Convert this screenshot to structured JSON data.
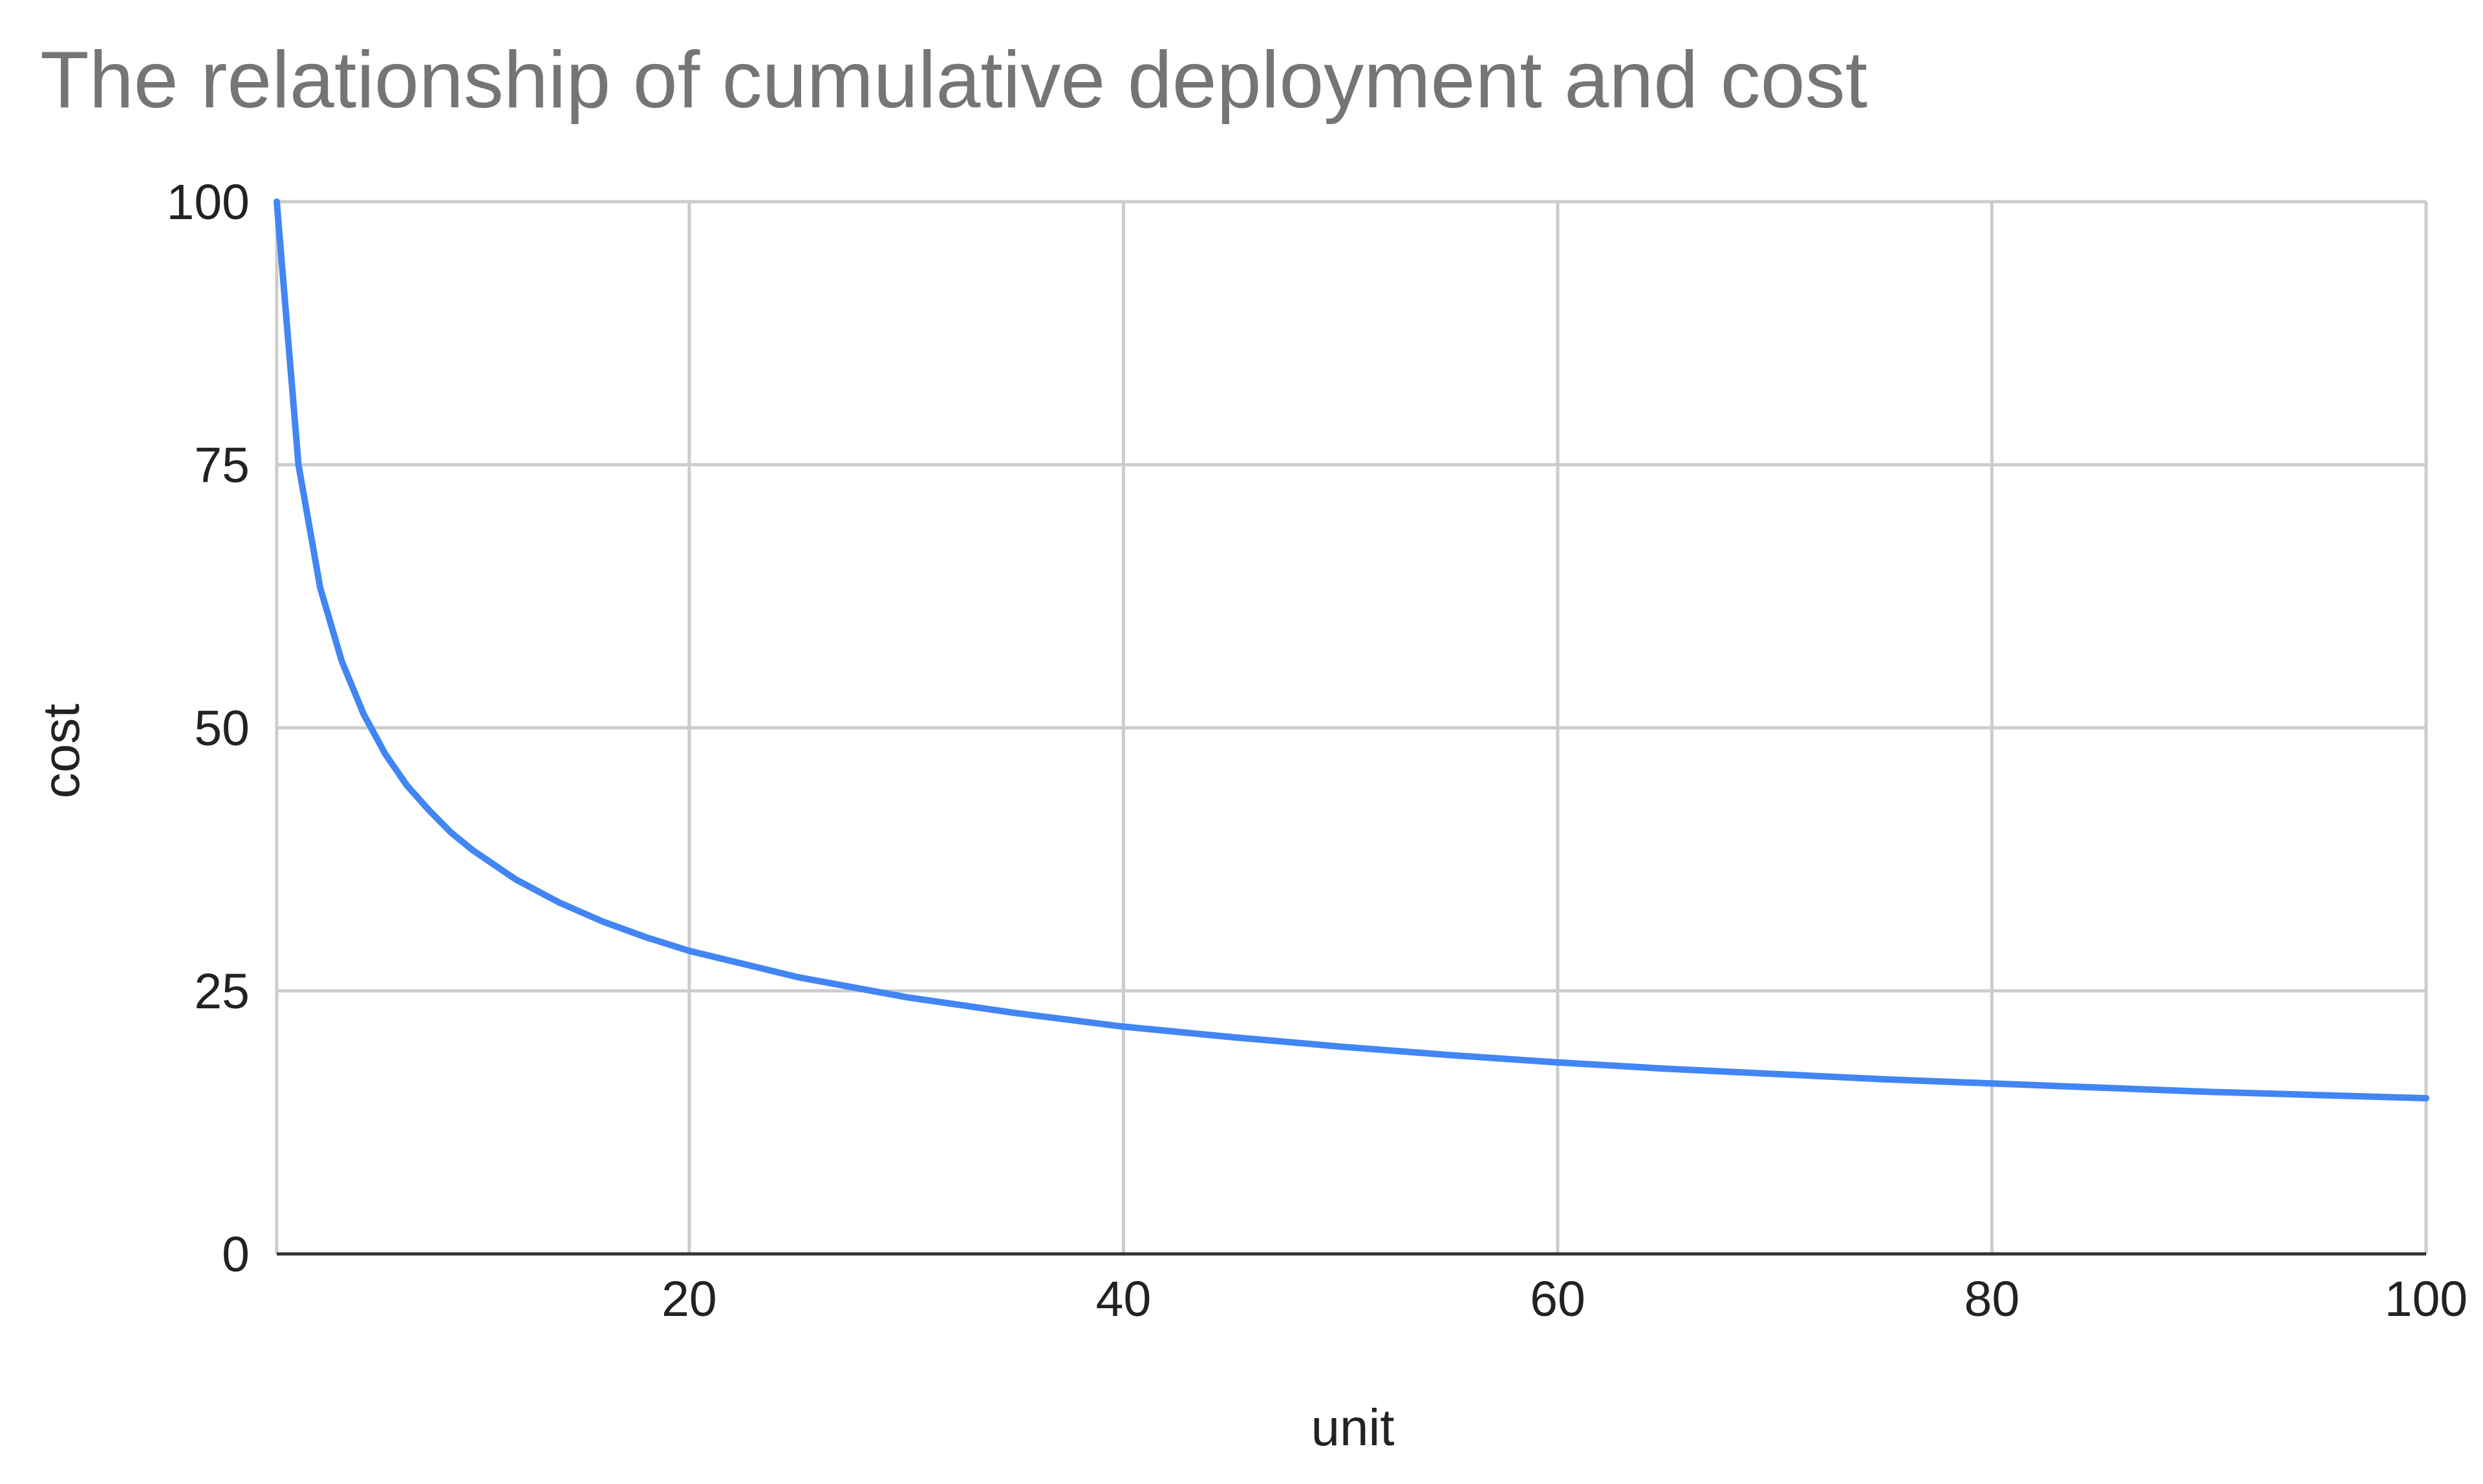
{
  "chart_data": {
    "type": "line",
    "title": "The relationship of cumulative deployment and cost",
    "xlabel": "unit",
    "ylabel": "cost",
    "xlim": [
      1,
      100
    ],
    "ylim": [
      0,
      100
    ],
    "x_ticks": [
      20,
      40,
      60,
      80,
      100
    ],
    "y_ticks": [
      0,
      25,
      50,
      75,
      100
    ],
    "grid": true,
    "legend": "none",
    "series": [
      {
        "color": "#4285f4",
        "x": [
          1,
          2,
          3,
          4,
          5,
          6,
          7,
          8,
          9,
          10,
          12,
          14,
          16,
          18,
          20,
          25,
          30,
          35,
          40,
          45,
          50,
          55,
          60,
          65,
          70,
          75,
          80,
          85,
          90,
          95,
          100
        ],
        "values": [
          100,
          75,
          63.3,
          56.3,
          51.3,
          47.5,
          44.5,
          42.2,
          40.1,
          38.4,
          35.6,
          33.4,
          31.6,
          30.1,
          28.8,
          26.3,
          24.4,
          22.9,
          21.6,
          20.6,
          19.7,
          18.9,
          18.2,
          17.6,
          17.1,
          16.6,
          16.2,
          15.8,
          15.4,
          15.1,
          14.8
        ]
      }
    ]
  }
}
